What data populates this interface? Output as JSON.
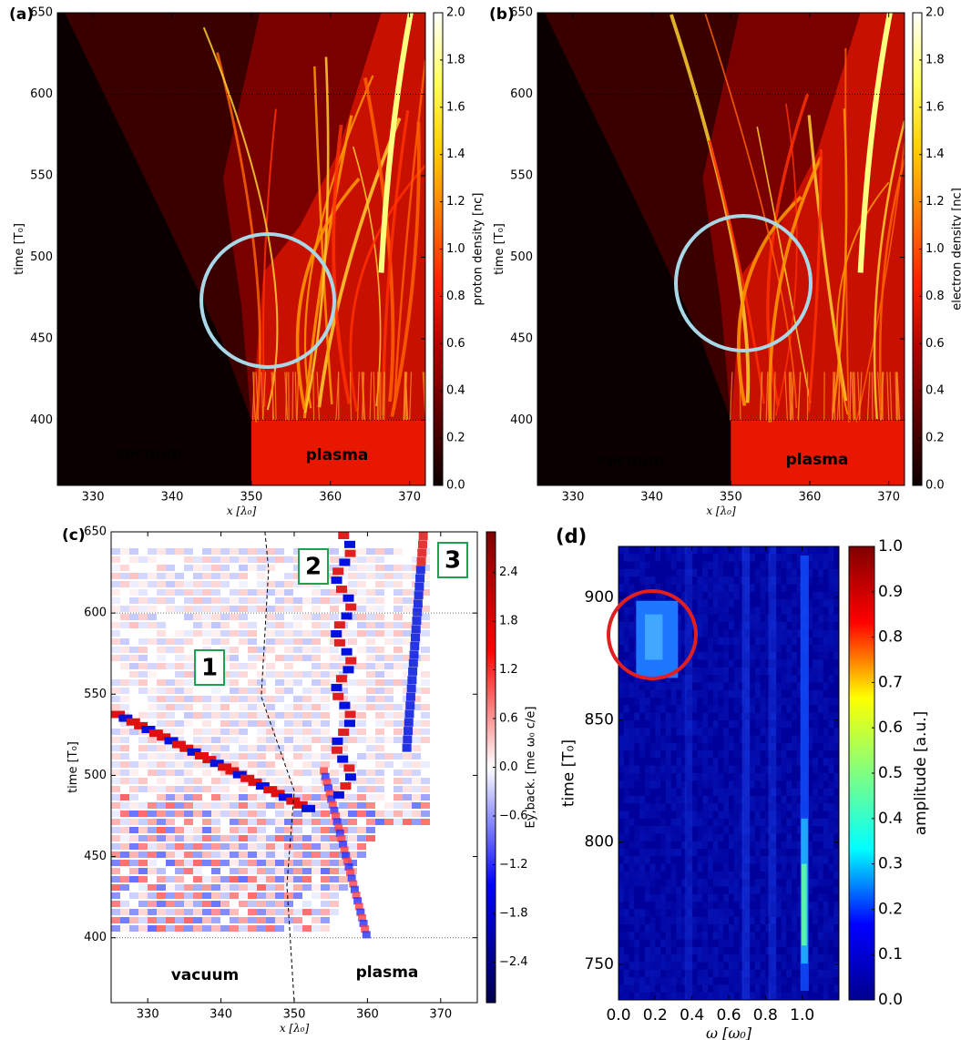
{
  "chart_data": [
    {
      "type": "heatmap",
      "panel_label": "(a)",
      "xlabel": "x [λ₀]",
      "ylabel": "time [T₀]",
      "colorbar_label": "proton density [nc]",
      "colormap": "hot",
      "xlim": [
        325.5,
        372
      ],
      "ylim": [
        360,
        650
      ],
      "xticks": [
        330,
        340,
        350,
        360,
        370
      ],
      "yticks": [
        400,
        450,
        500,
        550,
        600,
        650
      ],
      "clim": [
        0,
        2
      ],
      "cticks": [
        {
          "value": 0,
          "label": "0.0"
        },
        {
          "value": 0.2,
          "label": "0.2"
        },
        {
          "value": 0.4,
          "label": "0.4"
        },
        {
          "value": 0.6,
          "label": "0.6"
        },
        {
          "value": 0.8,
          "label": "0.8"
        },
        {
          "value": 1,
          "label": "1.0"
        },
        {
          "value": 1.2,
          "label": "1.2"
        },
        {
          "value": 1.4,
          "label": "1.4"
        },
        {
          "value": 1.6,
          "label": "1.6"
        },
        {
          "value": 1.8,
          "label": "1.8"
        },
        {
          "value": 2,
          "label": "2.0"
        }
      ],
      "hlines": [
        400,
        600
      ],
      "annotations": [
        "vacuum",
        "plasma"
      ]
    },
    {
      "type": "heatmap",
      "panel_label": "(b)",
      "xlabel": "x [λ₀]",
      "ylabel": "time [T₀]",
      "colorbar_label": "electron density [nc]",
      "colormap": "hot",
      "xlim": [
        325.5,
        372
      ],
      "ylim": [
        360,
        650
      ],
      "xticks": [
        330,
        340,
        350,
        360,
        370
      ],
      "yticks": [
        400,
        450,
        500,
        550,
        600,
        650
      ],
      "clim": [
        0,
        2
      ],
      "cticks": [
        {
          "value": 0,
          "label": "0.0"
        },
        {
          "value": 0.2,
          "label": "0.2"
        },
        {
          "value": 0.4,
          "label": "0.4"
        },
        {
          "value": 0.6,
          "label": "0.6"
        },
        {
          "value": 0.8,
          "label": "0.8"
        },
        {
          "value": 1,
          "label": "1.0"
        },
        {
          "value": 1.2,
          "label": "1.2"
        },
        {
          "value": 1.4,
          "label": "1.4"
        },
        {
          "value": 1.6,
          "label": "1.6"
        },
        {
          "value": 1.8,
          "label": "1.8"
        },
        {
          "value": 2,
          "label": "2.0"
        }
      ],
      "hlines": [
        400,
        600
      ],
      "annotations": [
        "vacuum",
        "plasma"
      ]
    },
    {
      "type": "heatmap",
      "panel_label": "(c)",
      "xlabel": "x [λ₀]",
      "ylabel": "time [T₀]",
      "colorbar_label": "Ey,back. [me ω₀ c/e]",
      "colormap": "seismic",
      "xlim": [
        325,
        375
      ],
      "ylim": [
        360,
        650
      ],
      "xticks": [
        330,
        340,
        350,
        360,
        370
      ],
      "yticks": [
        400,
        450,
        500,
        550,
        600,
        650
      ],
      "clim": [
        -2.9,
        2.9
      ],
      "cticks": [
        {
          "value": -2.4,
          "label": "−2.4"
        },
        {
          "value": -1.8,
          "label": "−1.8"
        },
        {
          "value": -1.2,
          "label": "−1.2"
        },
        {
          "value": -0.6,
          "label": "−0.6"
        },
        {
          "value": 0,
          "label": "0.0"
        },
        {
          "value": 0.6,
          "label": "0.6"
        },
        {
          "value": 1.2,
          "label": "1.2"
        },
        {
          "value": 1.8,
          "label": "1.8"
        },
        {
          "value": 2.4,
          "label": "2.4"
        }
      ],
      "hlines": [
        400,
        600
      ],
      "annotations": [
        "vacuum",
        "plasma"
      ],
      "markers": [
        "1",
        "2",
        "3"
      ]
    },
    {
      "type": "heatmap",
      "panel_label": "(d)",
      "xlabel": "ω [ω₀]",
      "ylabel": "time [T₀]",
      "colorbar_label": "amplitude [a.u.]",
      "colormap": "jet",
      "xlim": [
        0,
        1.2
      ],
      "ylim": [
        735.5,
        920.8
      ],
      "xticks": [
        {
          "value": 0,
          "label": "0.0"
        },
        {
          "value": 0.2,
          "label": "0.2"
        },
        {
          "value": 0.4,
          "label": "0.4"
        },
        {
          "value": 0.6,
          "label": "0.6"
        },
        {
          "value": 0.8,
          "label": "0.8"
        },
        {
          "value": 1,
          "label": "1.0"
        }
      ],
      "yticks": [
        750,
        800,
        850,
        900
      ],
      "clim": [
        0,
        1
      ],
      "cticks": [
        {
          "value": 0,
          "label": "0.0"
        },
        {
          "value": 0.1,
          "label": "0.1"
        },
        {
          "value": 0.2,
          "label": "0.2"
        },
        {
          "value": 0.3,
          "label": "0.3"
        },
        {
          "value": 0.4,
          "label": "0.4"
        },
        {
          "value": 0.5,
          "label": "0.5"
        },
        {
          "value": 0.6,
          "label": "0.6"
        },
        {
          "value": 0.7,
          "label": "0.7"
        },
        {
          "value": 0.8,
          "label": "0.8"
        },
        {
          "value": 0.9,
          "label": "0.9"
        },
        {
          "value": 1,
          "label": "1.0"
        }
      ]
    }
  ]
}
